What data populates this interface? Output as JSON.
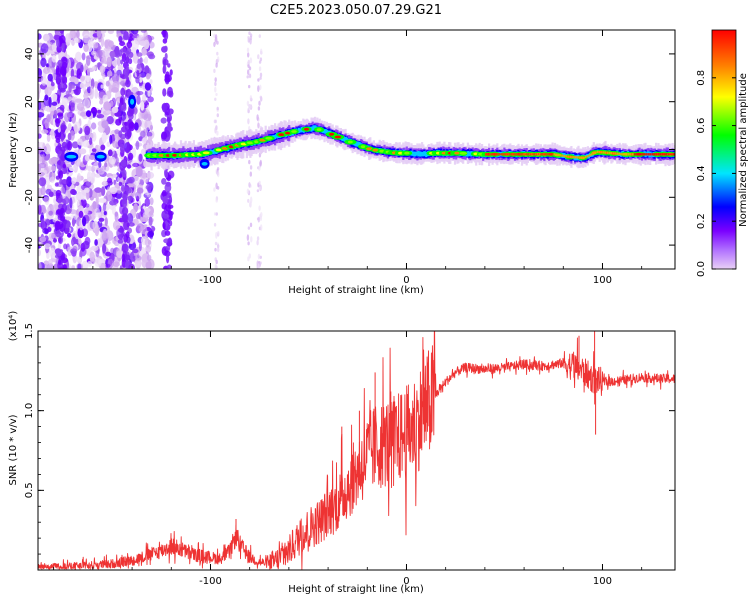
{
  "figure_title": "C2E5.2023.050.07.29.G21",
  "chart_data": [
    {
      "type": "heatmap",
      "xlabel": "Height of straight line (km)",
      "ylabel": "Frequency (Hz)",
      "xlim": [
        -188,
        137
      ],
      "ylim": [
        -50,
        50
      ],
      "x_ticks": [
        "-100",
        "0",
        "100"
      ],
      "x_tick_values": [
        -100,
        0,
        100
      ],
      "y_ticks": [
        "-40",
        "-20",
        "0",
        "20",
        "40"
      ],
      "y_tick_values": [
        -40,
        -20,
        0,
        20,
        40
      ],
      "colorbar": {
        "label": "Normalized spectral amplitude",
        "range": [
          0,
          1
        ],
        "ticks": [
          "0.0",
          "0.2",
          "0.4",
          "0.6",
          "0.8"
        ],
        "tick_values": [
          0.0,
          0.2,
          0.4,
          0.6,
          0.8
        ],
        "colormap": "rainbow",
        "stops": [
          "#e9d0f6",
          "#7a00ff",
          "#0000ff",
          "#00e5ff",
          "#00ff00",
          "#ffff00",
          "#ff8000",
          "#ff0000"
        ]
      },
      "ridge": {
        "x": [
          -133,
          -120,
          -105,
          -95,
          -85,
          -75,
          -65,
          -55,
          -47,
          -40,
          -33,
          -25,
          -18,
          -10,
          -5,
          0,
          5,
          15,
          25,
          40,
          60,
          75,
          82,
          90,
          97,
          110,
          137
        ],
        "y": [
          -2.5,
          -2.5,
          -2,
          0,
          2,
          3.5,
          6,
          8,
          9,
          7,
          4.5,
          2,
          0,
          -1,
          -1.5,
          -1.5,
          -2,
          -1.5,
          -1.5,
          -2,
          -2,
          -2,
          -3,
          -3.5,
          -1,
          -2,
          -2
        ]
      },
      "noise_region_x": [
        -188,
        -130
      ]
    },
    {
      "type": "line",
      "xlabel": "Height of straight line (km)",
      "ylabel": "SNR (10 * v/v)",
      "y_multiplier": "(x10⁴)",
      "xlim": [
        -188,
        137
      ],
      "ylim": [
        0,
        1.5
      ],
      "x_ticks": [
        "-100",
        "0",
        "100"
      ],
      "x_tick_values": [
        -100,
        0,
        100
      ],
      "y_ticks": [
        "0.5",
        "1.0",
        "1.5"
      ],
      "y_tick_values": [
        0.5,
        1.0,
        1.5
      ],
      "line_color": "#ee3333",
      "series": [
        {
          "x": [
            -188,
            -175,
            -160,
            -150,
            -140,
            -135,
            -130,
            -125,
            -120,
            -115,
            -110,
            -105,
            -100,
            -95,
            -90,
            -87,
            -85,
            -80,
            -75,
            -70,
            -65,
            -60,
            -55,
            -50,
            -45,
            -40,
            -35,
            -30,
            -25,
            -20,
            -15,
            -10,
            -5,
            0,
            5,
            10,
            15,
            20,
            25,
            30,
            40,
            50,
            60,
            70,
            80,
            85,
            90,
            95,
            100,
            110,
            120,
            130,
            137
          ],
          "values": [
            0.02,
            0.02,
            0.03,
            0.04,
            0.06,
            0.08,
            0.1,
            0.12,
            0.15,
            0.13,
            0.1,
            0.09,
            0.08,
            0.07,
            0.12,
            0.22,
            0.16,
            0.08,
            0.05,
            0.04,
            0.07,
            0.12,
            0.2,
            0.26,
            0.3,
            0.36,
            0.42,
            0.52,
            0.62,
            0.72,
            0.78,
            0.8,
            0.82,
            0.86,
            0.92,
            1.02,
            1.1,
            1.18,
            1.24,
            1.27,
            1.26,
            1.27,
            1.29,
            1.28,
            1.3,
            1.28,
            1.25,
            1.2,
            1.18,
            1.19,
            1.21,
            1.2,
            1.2
          ]
        }
      ]
    }
  ]
}
